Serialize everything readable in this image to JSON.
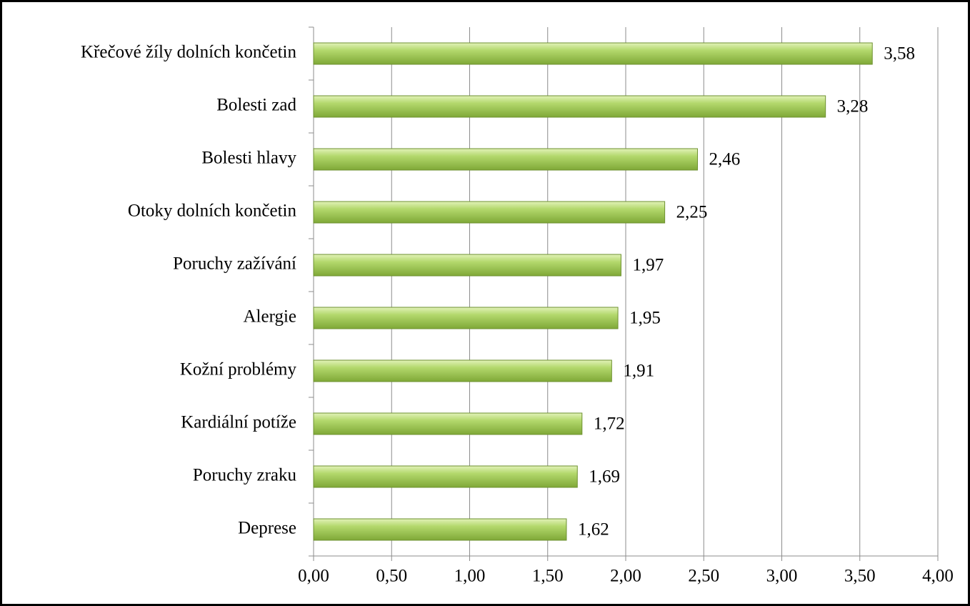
{
  "chart_data": {
    "type": "bar",
    "orientation": "horizontal",
    "categories": [
      "Křečové žíly dolních končetin",
      "Bolesti zad",
      "Bolesti hlavy",
      "Otoky dolních končetin",
      "Poruchy zažívání",
      "Alergie",
      "Kožní problémy",
      "Kardiální potíže",
      "Poruchy zraku",
      "Deprese"
    ],
    "values": [
      3.58,
      3.28,
      2.46,
      2.25,
      1.97,
      1.95,
      1.91,
      1.72,
      1.69,
      1.62
    ],
    "value_labels": [
      "3,58",
      "3,28",
      "2,46",
      "2,25",
      "1,97",
      "1,95",
      "1,91",
      "1,72",
      "1,69",
      "1,62"
    ],
    "color": "#9cc54e",
    "xlim": [
      0,
      4
    ],
    "xticks": [
      {
        "value": 0,
        "label": "0,00"
      },
      {
        "value": 0.5,
        "label": "0,50"
      },
      {
        "value": 1,
        "label": "1,00"
      },
      {
        "value": 1.5,
        "label": "1,50"
      },
      {
        "value": 2,
        "label": "2,00"
      },
      {
        "value": 2.5,
        "label": "2,50"
      },
      {
        "value": 3,
        "label": "3,00"
      },
      {
        "value": 3.5,
        "label": "3,50"
      },
      {
        "value": 4,
        "label": "4,00"
      }
    ],
    "grid": true
  }
}
